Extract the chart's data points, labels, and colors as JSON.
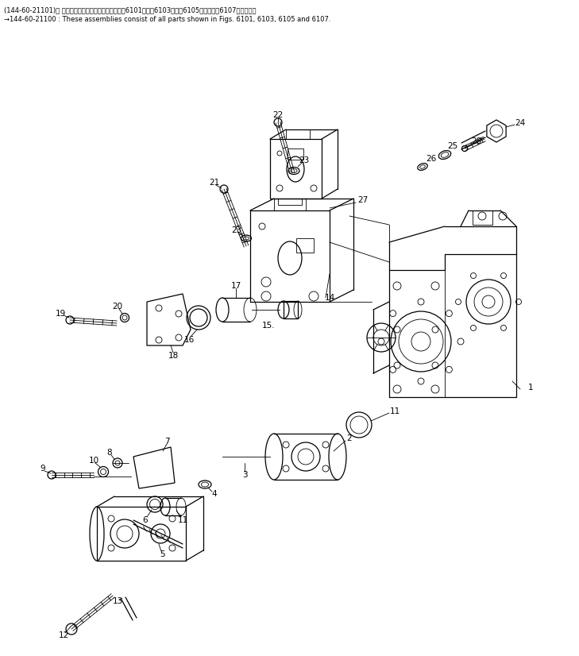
{
  "title_line1": "(144-60-21101)） これらのアセンブリの構成部品は第6101図、第6103図、第6105図および第6107図を見よ。",
  "title_line2": "→144-60-21100 : These assemblies consist of all parts shown in Figs. 6101, 6103, 6105 and 6107.",
  "bg_color": "#ffffff",
  "line_color": "#000000",
  "lw_main": 0.9,
  "lw_thin": 0.6,
  "label_fs": 7.5,
  "header_fs": 6.0
}
